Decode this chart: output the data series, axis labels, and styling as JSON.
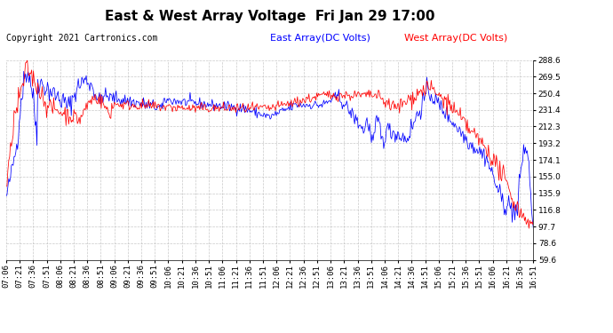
{
  "title": "East & West Array Voltage  Fri Jan 29 17:00",
  "copyright": "Copyright 2021 Cartronics.com",
  "legend_east": "East Array(DC Volts)",
  "legend_west": "West Array(DC Volts)",
  "east_color": "#0000ff",
  "west_color": "#ff0000",
  "background_color": "#ffffff",
  "grid_color": "#bbbbbb",
  "ylim": [
    59.6,
    288.6
  ],
  "yticks": [
    59.6,
    78.6,
    97.7,
    116.8,
    135.9,
    155.0,
    174.1,
    193.2,
    212.3,
    231.4,
    250.4,
    269.5,
    288.6
  ],
  "xtick_labels": [
    "07:06",
    "07:21",
    "07:36",
    "07:51",
    "08:06",
    "08:21",
    "08:36",
    "08:51",
    "09:06",
    "09:21",
    "09:36",
    "09:51",
    "10:06",
    "10:21",
    "10:36",
    "10:51",
    "11:06",
    "11:21",
    "11:36",
    "11:51",
    "12:06",
    "12:21",
    "12:36",
    "12:51",
    "13:06",
    "13:21",
    "13:36",
    "13:51",
    "14:06",
    "14:21",
    "14:36",
    "14:51",
    "15:06",
    "15:21",
    "15:36",
    "15:51",
    "16:06",
    "16:21",
    "16:36",
    "16:51"
  ],
  "title_fontsize": 11,
  "copyright_fontsize": 7,
  "legend_fontsize": 8,
  "tick_fontsize": 6.5
}
